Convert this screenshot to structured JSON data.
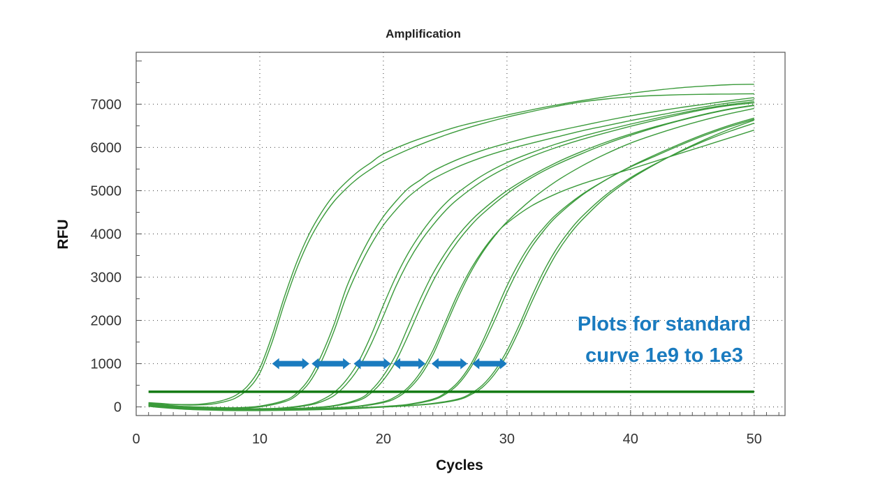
{
  "chart_data": {
    "type": "line",
    "title": "Amplification",
    "xlabel": "Cycles",
    "ylabel": "RFU",
    "xlim": [
      0,
      52.5
    ],
    "ylim": [
      -200,
      8200
    ],
    "xticks": [
      0,
      10,
      20,
      30,
      40,
      50
    ],
    "yticks": [
      0,
      1000,
      2000,
      3000,
      4000,
      5000,
      6000,
      7000
    ],
    "grid": true,
    "threshold": {
      "y": 350,
      "x": [
        1,
        50
      ]
    },
    "series": [
      {
        "x": [
          1,
          2,
          3,
          4,
          5,
          6,
          7,
          8,
          9,
          10,
          11,
          12,
          13,
          14,
          15,
          16,
          17,
          18,
          19,
          20,
          22,
          24,
          26,
          28,
          30,
          32,
          34,
          36,
          38,
          40,
          42,
          44,
          46,
          48,
          50
        ],
        "values": [
          100,
          80,
          60,
          55,
          60,
          90,
          150,
          260,
          480,
          900,
          1650,
          2550,
          3350,
          4000,
          4500,
          4900,
          5200,
          5450,
          5650,
          5850,
          6100,
          6300,
          6480,
          6620,
          6750,
          6870,
          6980,
          7080,
          7170,
          7250,
          7320,
          7380,
          7420,
          7450,
          7460
        ]
      },
      {
        "x": [
          1,
          2,
          3,
          4,
          5,
          6,
          7,
          8,
          9,
          10,
          11,
          12,
          13,
          14,
          15,
          16,
          17,
          18,
          19,
          20,
          22,
          24,
          26,
          28,
          30,
          32,
          34,
          36,
          38,
          40,
          42,
          44,
          46,
          48,
          50
        ],
        "values": [
          90,
          70,
          55,
          45,
          45,
          60,
          110,
          200,
          400,
          780,
          1500,
          2400,
          3200,
          3850,
          4350,
          4750,
          5050,
          5300,
          5500,
          5680,
          5950,
          6180,
          6380,
          6550,
          6700,
          6830,
          6950,
          7050,
          7120,
          7170,
          7200,
          7220,
          7230,
          7235,
          7240
        ]
      },
      {
        "x": [
          1,
          2,
          4,
          6,
          8,
          10,
          12,
          13,
          14,
          15,
          16,
          17,
          18,
          19,
          20,
          21,
          22,
          23,
          24,
          26,
          28,
          30,
          32,
          34,
          36,
          38,
          40,
          42,
          44,
          46,
          48,
          50
        ],
        "values": [
          80,
          50,
          10,
          -10,
          -20,
          20,
          150,
          320,
          650,
          1200,
          1900,
          2750,
          3400,
          3950,
          4400,
          4750,
          5050,
          5250,
          5450,
          5720,
          5930,
          6100,
          6250,
          6380,
          6500,
          6620,
          6730,
          6830,
          6920,
          7000,
          7080,
          7150
        ]
      },
      {
        "x": [
          1,
          2,
          4,
          6,
          8,
          10,
          12,
          13,
          14,
          15,
          16,
          17,
          18,
          19,
          20,
          21,
          22,
          23,
          24,
          26,
          28,
          30,
          32,
          34,
          36,
          38,
          40,
          42,
          44,
          46,
          48,
          50
        ],
        "values": [
          70,
          40,
          0,
          -20,
          -30,
          0,
          120,
          270,
          560,
          1060,
          1750,
          2550,
          3200,
          3750,
          4200,
          4550,
          4850,
          5080,
          5270,
          5550,
          5770,
          5950,
          6100,
          6240,
          6380,
          6500,
          6620,
          6730,
          6840,
          6940,
          7030,
          7100
        ]
      },
      {
        "x": [
          1,
          2,
          4,
          6,
          8,
          10,
          12,
          14,
          15,
          16,
          17,
          18,
          19,
          20,
          21,
          22,
          23,
          24,
          25,
          26,
          28,
          30,
          32,
          34,
          36,
          38,
          40,
          42,
          44,
          46,
          48,
          50
        ],
        "values": [
          60,
          30,
          -10,
          -30,
          -40,
          -40,
          -20,
          60,
          160,
          330,
          620,
          1050,
          1650,
          2350,
          3000,
          3550,
          4000,
          4380,
          4700,
          4950,
          5350,
          5650,
          5880,
          6080,
          6250,
          6400,
          6540,
          6670,
          6790,
          6900,
          6990,
          7060
        ]
      },
      {
        "x": [
          1,
          2,
          4,
          6,
          8,
          10,
          12,
          14,
          15,
          16,
          17,
          18,
          19,
          20,
          21,
          22,
          23,
          24,
          25,
          26,
          28,
          30,
          32,
          34,
          36,
          38,
          40,
          42,
          44,
          46,
          48,
          50
        ],
        "values": [
          55,
          25,
          -15,
          -35,
          -45,
          -45,
          -30,
          40,
          120,
          260,
          520,
          900,
          1450,
          2100,
          2780,
          3350,
          3820,
          4200,
          4530,
          4800,
          5220,
          5540,
          5790,
          6000,
          6180,
          6340,
          6490,
          6630,
          6760,
          6880,
          6970,
          7030
        ]
      },
      {
        "x": [
          1,
          2,
          4,
          6,
          8,
          10,
          12,
          14,
          16,
          18,
          19,
          20,
          21,
          22,
          23,
          24,
          25,
          26,
          27,
          28,
          30,
          32,
          34,
          36,
          38,
          40,
          42,
          44,
          46,
          48,
          50
        ],
        "values": [
          50,
          20,
          -20,
          -40,
          -50,
          -50,
          -40,
          -20,
          30,
          180,
          380,
          720,
          1200,
          1850,
          2500,
          3080,
          3550,
          3950,
          4280,
          4550,
          5000,
          5350,
          5650,
          5900,
          6120,
          6310,
          6480,
          6630,
          6770,
          6890,
          6980
        ]
      },
      {
        "x": [
          1,
          2,
          4,
          6,
          8,
          10,
          12,
          14,
          16,
          18,
          19,
          20,
          21,
          22,
          23,
          24,
          25,
          26,
          27,
          28,
          30,
          32,
          34,
          36,
          38,
          40,
          42,
          44,
          46,
          48,
          50
        ],
        "values": [
          45,
          15,
          -25,
          -45,
          -55,
          -55,
          -45,
          -25,
          20,
          150,
          320,
          620,
          1050,
          1650,
          2300,
          2900,
          3400,
          3820,
          4170,
          4460,
          4930,
          5300,
          5600,
          5850,
          6080,
          6280,
          6460,
          6620,
          6760,
          6880,
          6970
        ]
      },
      {
        "x": [
          1,
          2,
          4,
          6,
          8,
          10,
          12,
          14,
          16,
          18,
          20,
          21,
          22,
          23,
          24,
          25,
          26,
          27,
          28,
          29,
          30,
          32,
          34,
          36,
          38,
          40,
          42,
          44,
          46,
          48,
          50
        ],
        "values": [
          40,
          10,
          -30,
          -50,
          -60,
          -60,
          -55,
          -40,
          -20,
          20,
          120,
          240,
          450,
          800,
          1300,
          1950,
          2600,
          3150,
          3600,
          3970,
          4250,
          4650,
          4930,
          5150,
          5330,
          5500,
          5680,
          5860,
          6040,
          6220,
          6400
        ]
      },
      {
        "x": [
          1,
          2,
          4,
          6,
          8,
          10,
          12,
          14,
          16,
          18,
          20,
          21,
          22,
          23,
          24,
          25,
          26,
          27,
          28,
          29,
          30,
          32,
          34,
          36,
          38,
          40,
          42,
          44,
          46,
          48,
          50
        ],
        "values": [
          35,
          5,
          -35,
          -55,
          -65,
          -65,
          -60,
          -45,
          -25,
          10,
          100,
          200,
          400,
          720,
          1200,
          1850,
          2500,
          3080,
          3560,
          3950,
          4280,
          4800,
          5220,
          5560,
          5850,
          6100,
          6300,
          6480,
          6640,
          6780,
          6900
        ]
      },
      {
        "x": [
          1,
          2,
          4,
          6,
          8,
          10,
          12,
          14,
          16,
          18,
          20,
          22,
          24,
          25,
          26,
          27,
          28,
          29,
          30,
          31,
          32,
          33,
          34,
          36,
          38,
          40,
          42,
          44,
          46,
          48,
          50
        ],
        "values": [
          30,
          0,
          -40,
          -60,
          -70,
          -70,
          -65,
          -55,
          -40,
          -20,
          10,
          60,
          180,
          320,
          560,
          950,
          1500,
          2150,
          2800,
          3350,
          3800,
          4150,
          4450,
          4900,
          5250,
          5550,
          5800,
          6050,
          6280,
          6480,
          6650
        ]
      },
      {
        "x": [
          1,
          2,
          4,
          6,
          8,
          10,
          12,
          14,
          16,
          18,
          20,
          22,
          24,
          25,
          26,
          27,
          28,
          29,
          30,
          31,
          32,
          33,
          34,
          36,
          38,
          40,
          42,
          44,
          46,
          48,
          50
        ],
        "values": [
          25,
          -5,
          -45,
          -65,
          -75,
          -75,
          -70,
          -60,
          -45,
          -25,
          5,
          50,
          160,
          290,
          510,
          880,
          1400,
          2000,
          2650,
          3220,
          3700,
          4080,
          4400,
          4880,
          5250,
          5560,
          5830,
          6080,
          6310,
          6510,
          6680
        ]
      },
      {
        "x": [
          1,
          2,
          4,
          6,
          8,
          10,
          12,
          14,
          16,
          18,
          20,
          22,
          24,
          26,
          27,
          28,
          29,
          30,
          31,
          32,
          33,
          34,
          35,
          36,
          38,
          40,
          42,
          44,
          46,
          48,
          50
        ],
        "values": [
          20,
          -10,
          -50,
          -70,
          -80,
          -80,
          -75,
          -65,
          -50,
          -30,
          0,
          30,
          80,
          180,
          300,
          500,
          830,
          1300,
          1900,
          2550,
          3150,
          3650,
          4050,
          4380,
          4900,
          5300,
          5620,
          5900,
          6150,
          6370,
          6560
        ]
      },
      {
        "x": [
          1,
          2,
          4,
          6,
          8,
          10,
          12,
          14,
          16,
          18,
          20,
          22,
          24,
          26,
          27,
          28,
          29,
          30,
          31,
          32,
          33,
          34,
          35,
          36,
          38,
          40,
          42,
          44,
          46,
          48,
          50
        ],
        "values": [
          15,
          -15,
          -55,
          -75,
          -85,
          -85,
          -80,
          -70,
          -55,
          -35,
          -5,
          25,
          70,
          160,
          270,
          450,
          760,
          1200,
          1780,
          2420,
          3020,
          3540,
          3960,
          4300,
          4850,
          5270,
          5610,
          5910,
          6180,
          6420,
          6630
        ]
      }
    ]
  },
  "annotation": {
    "line1": "Plots for standard",
    "line2": "curve 1e9 to 1e3"
  },
  "arrows": [
    {
      "x1": 11,
      "x2": 14,
      "y": 1000
    },
    {
      "x1": 14.2,
      "x2": 17.3,
      "y": 1000
    },
    {
      "x1": 17.6,
      "x2": 20.6,
      "y": 1000
    },
    {
      "x1": 20.8,
      "x2": 23.4,
      "y": 1000
    },
    {
      "x1": 23.9,
      "x2": 26.8,
      "y": 1000
    },
    {
      "x1": 27.2,
      "x2": 30,
      "y": 1000
    }
  ],
  "colors": {
    "curve": "#3a9a3a",
    "threshold": "#127a12",
    "arrow": "#1a7bbf",
    "annotation": "#1a7bbf"
  }
}
